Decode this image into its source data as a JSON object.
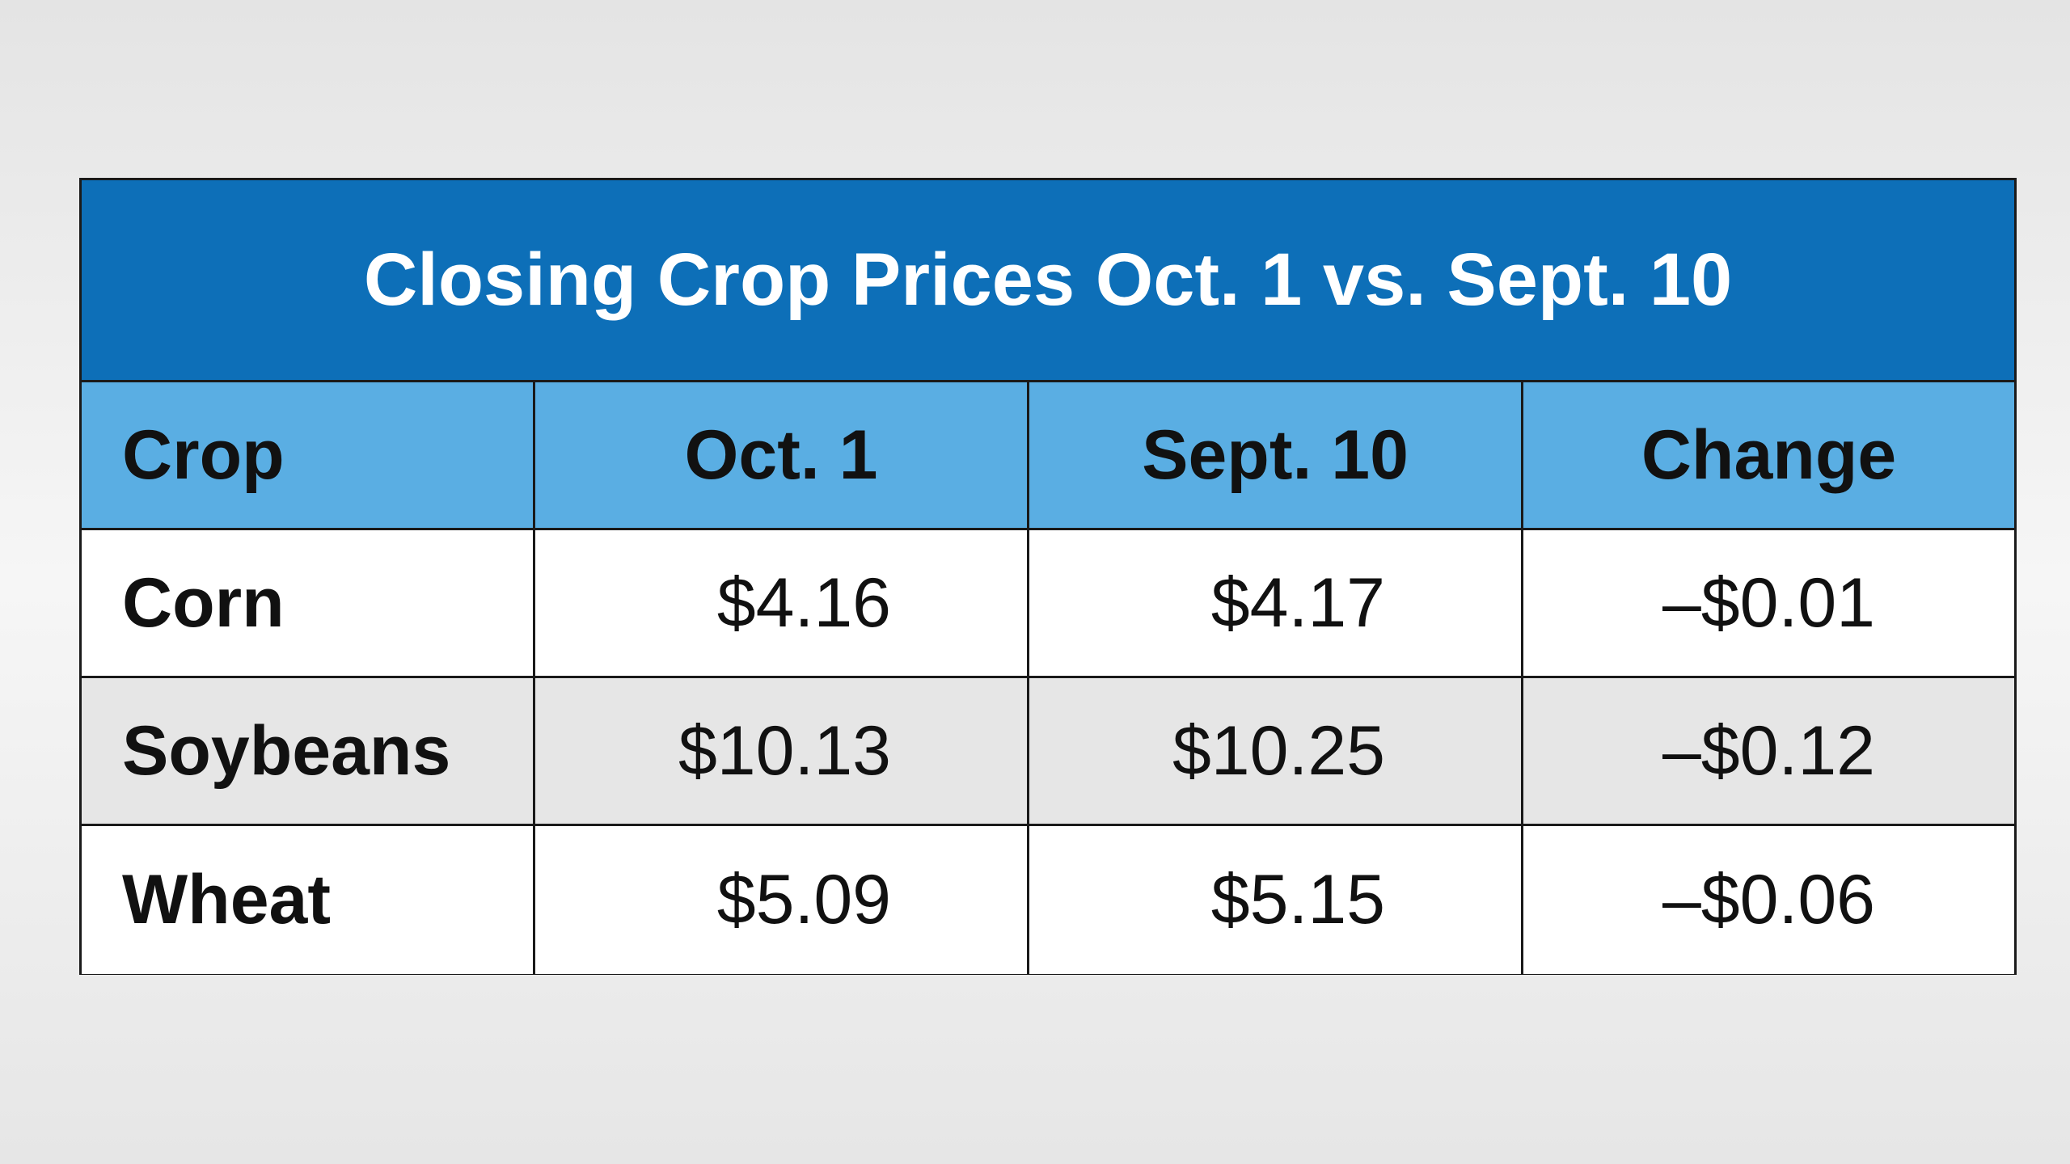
{
  "table": {
    "title": "Closing Crop Prices Oct. 1 vs. Sept. 10",
    "header": [
      "Crop",
      "Oct. 1",
      "Sept. 10",
      "Change"
    ],
    "rows": [
      [
        "Corn",
        "$4.16",
        "$4.17",
        "–$0.01"
      ],
      [
        "Soybeans",
        "$10.13",
        "$10.25",
        "–$0.12"
      ],
      [
        "Wheat",
        "$5.09",
        "$5.15",
        "–$0.06"
      ]
    ]
  }
}
